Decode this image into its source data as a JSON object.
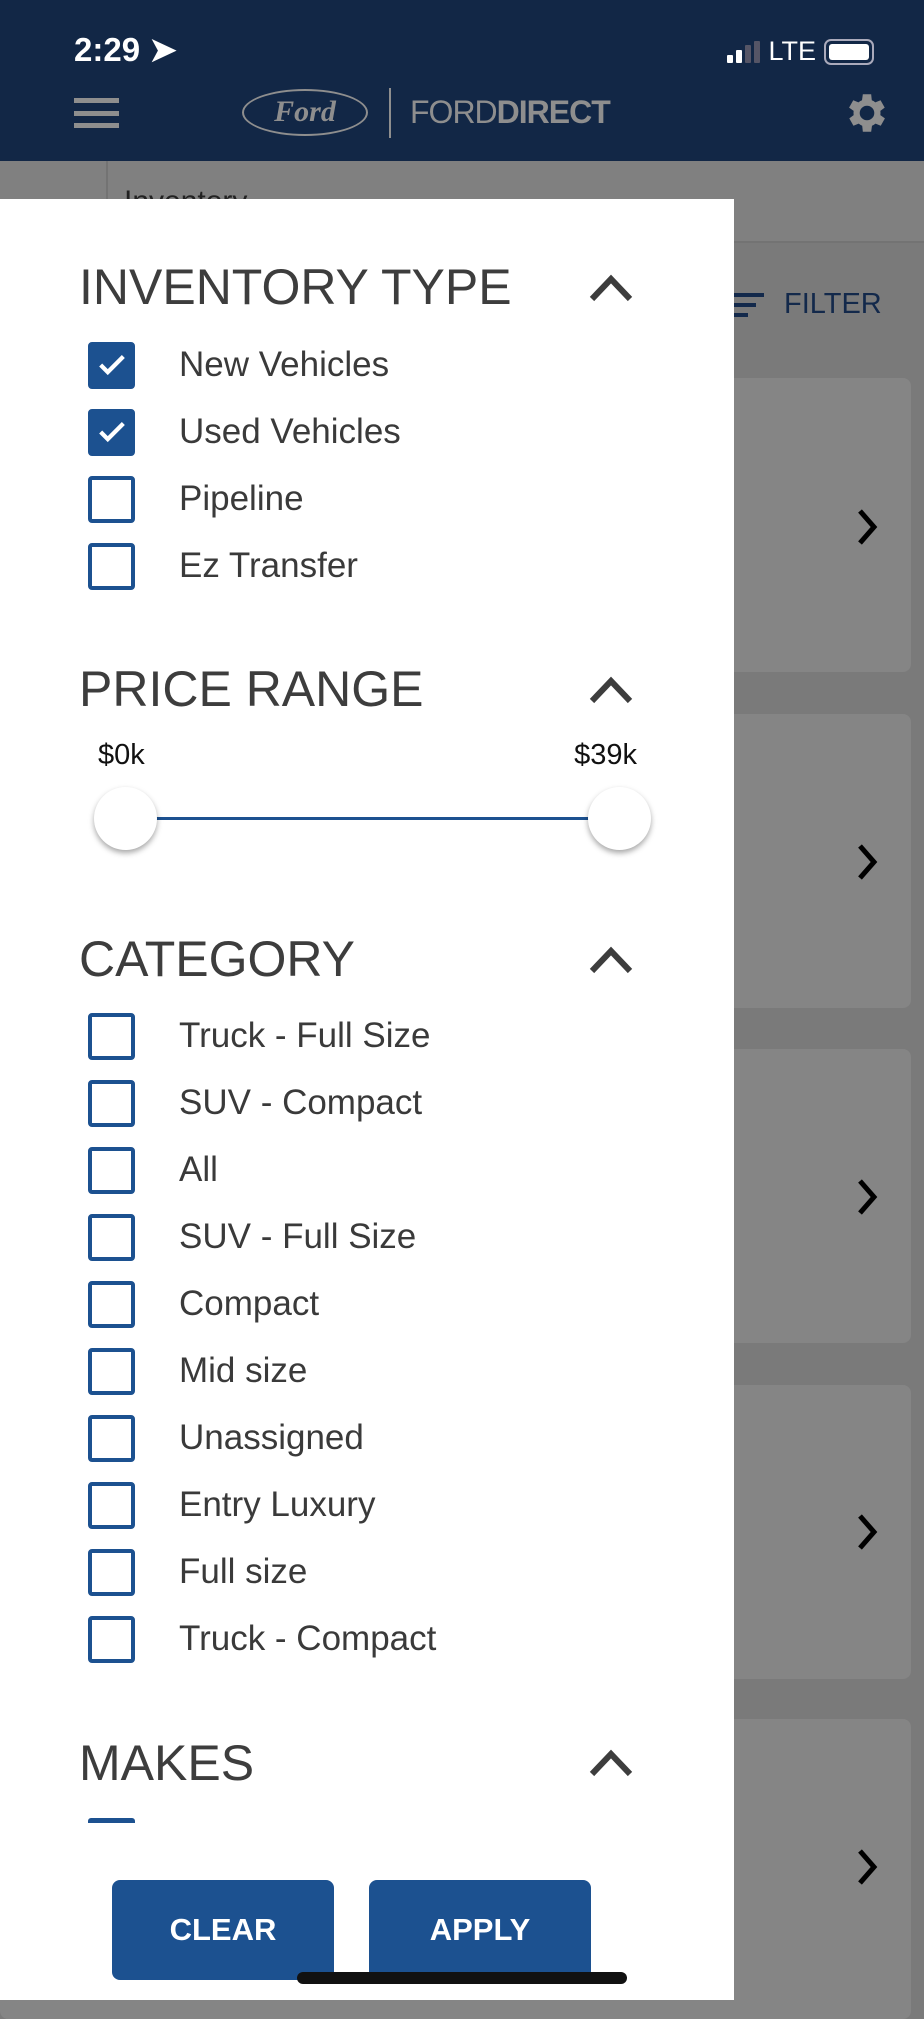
{
  "status_bar": {
    "time": "2:29",
    "network": "LTE",
    "icons": [
      "location-arrow-icon",
      "signal-icon",
      "battery-icon"
    ]
  },
  "header": {
    "logo_text": "Ford",
    "brand_light": "FORD",
    "brand_bold": "DIRECT",
    "icons": [
      "hamburger-icon",
      "gear-icon"
    ]
  },
  "background": {
    "breadcrumb": "Inventory",
    "filter_label": "FILTER"
  },
  "colors": {
    "header": "#122746",
    "accent": "#1c5190",
    "overlay": "#7a7a7a"
  },
  "inventory_type": {
    "title": "INVENTORY TYPE",
    "items": [
      {
        "label": "New Vehicles",
        "checked": true
      },
      {
        "label": "Used Vehicles",
        "checked": true
      },
      {
        "label": "Pipeline",
        "checked": false
      },
      {
        "label": "Ez Transfer",
        "checked": false
      }
    ]
  },
  "price_range": {
    "title": "PRICE RANGE",
    "min_label": "$0k",
    "max_label": "$39k",
    "min_value": 0,
    "max_value": 39
  },
  "category": {
    "title": "CATEGORY",
    "items": [
      {
        "label": "Truck - Full Size",
        "checked": false
      },
      {
        "label": "SUV - Compact",
        "checked": false
      },
      {
        "label": "All",
        "checked": false
      },
      {
        "label": "SUV - Full Size",
        "checked": false
      },
      {
        "label": "Compact",
        "checked": false
      },
      {
        "label": "Mid size",
        "checked": false
      },
      {
        "label": "Unassigned",
        "checked": false
      },
      {
        "label": "Entry Luxury",
        "checked": false
      },
      {
        "label": "Full size",
        "checked": false
      },
      {
        "label": "Truck - Compact",
        "checked": false
      }
    ]
  },
  "makes": {
    "title": "MAKES"
  },
  "buttons": {
    "clear": "CLEAR",
    "apply": "APPLY"
  }
}
